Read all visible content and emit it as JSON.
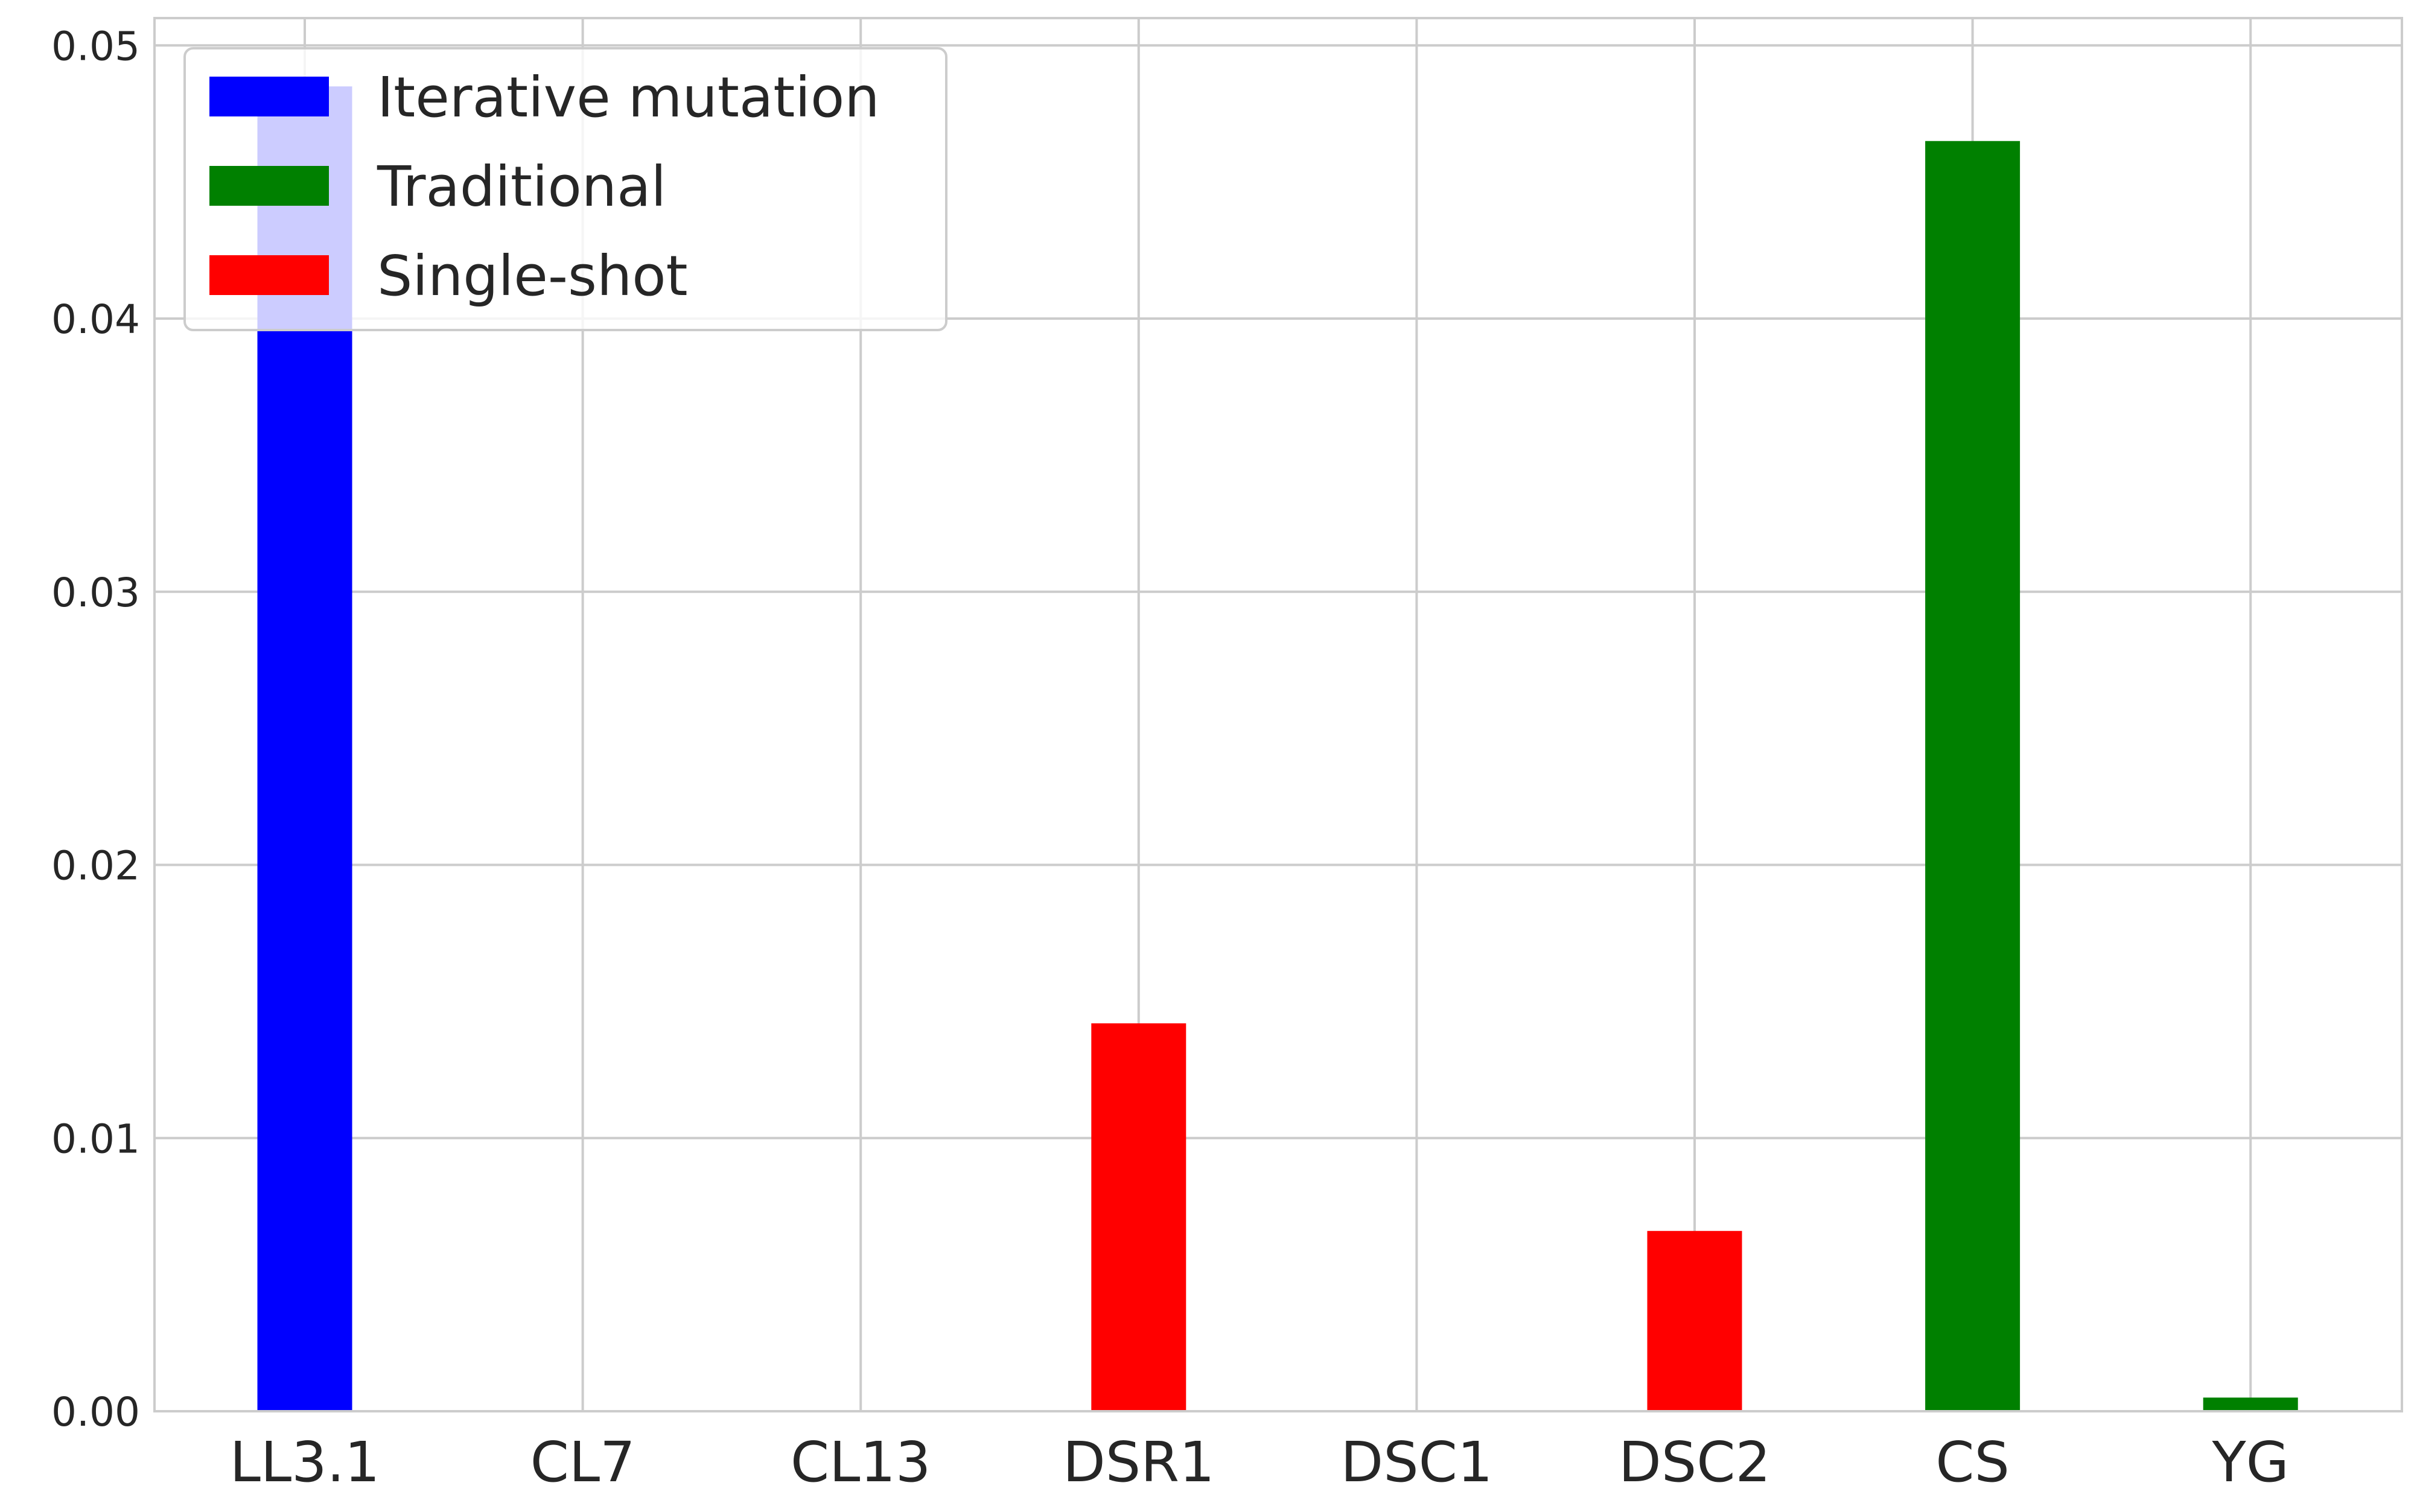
{
  "chart_data": {
    "type": "bar",
    "categories": [
      "LL3.1",
      "CL7",
      "CL13",
      "DSR1",
      "DSC1",
      "DSC2",
      "CS",
      "YG"
    ],
    "series": [
      {
        "name": "Iterative mutation",
        "color": "#0000ff",
        "values": [
          0.0485,
          0,
          0,
          0,
          0,
          0,
          0,
          0
        ]
      },
      {
        "name": "Traditional",
        "color": "#008000",
        "values": [
          0,
          0,
          0,
          0,
          0,
          0,
          0.0465,
          0.0005
        ]
      },
      {
        "name": "Single-shot",
        "color": "#ff0000",
        "values": [
          0,
          0,
          0,
          0.0142,
          0,
          0.0066,
          0,
          0
        ]
      }
    ],
    "yticks": [
      "0.00",
      "0.01",
      "0.02",
      "0.03",
      "0.04",
      "0.05"
    ],
    "ylim": [
      0,
      0.051
    ],
    "grid": true,
    "legend": "top-left",
    "title": "",
    "xlabel": "",
    "ylabel": ""
  }
}
